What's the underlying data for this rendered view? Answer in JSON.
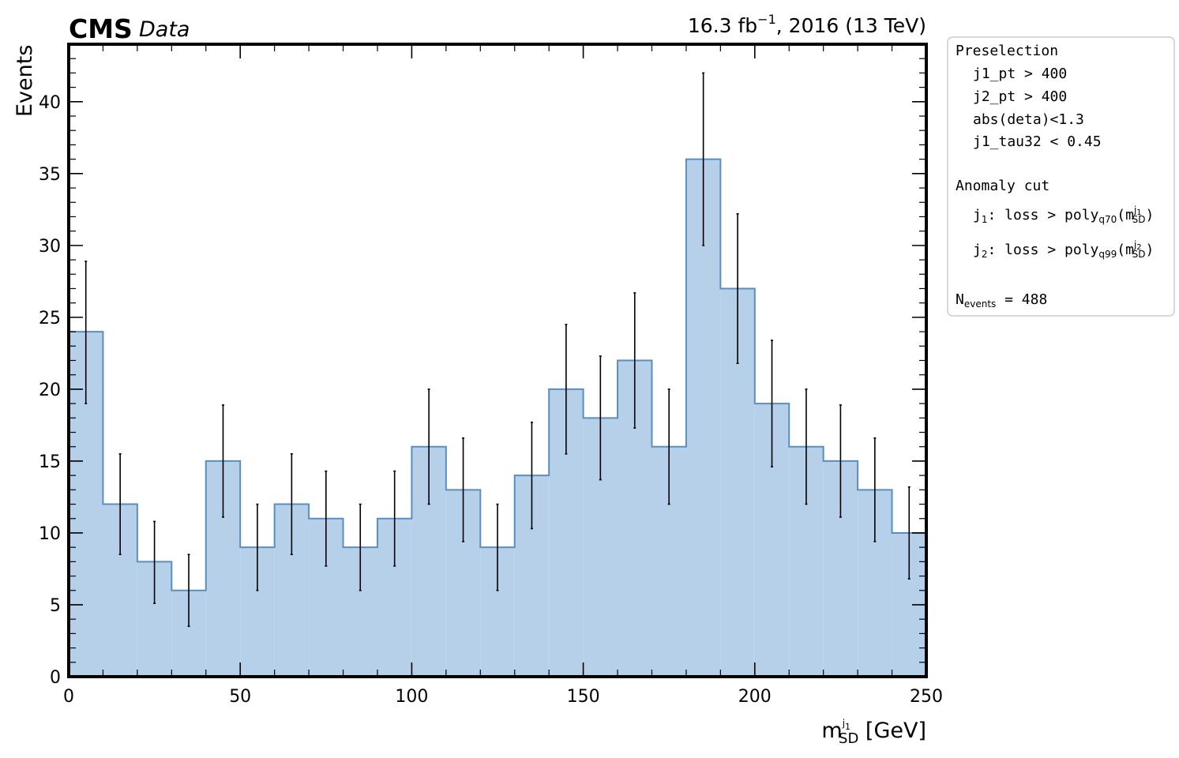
{
  "header": {
    "experiment": "CMS",
    "status": "Data",
    "lumi_value": "16.3 fb",
    "lumi_exp": "−1",
    "lumi_rest": ", 2016 (13 TeV)"
  },
  "legend": {
    "preselection_title": "Preselection",
    "preselection_cuts": [
      "j1_pt > 400",
      "j2_pt > 400",
      "abs(deta)<1.3",
      "j1_tau32 < 0.45"
    ],
    "anomaly_title": "Anomaly cut",
    "anomaly_j1": {
      "jet": "j",
      "jet_sub": "1",
      "text": ": loss > poly",
      "q_sub": "q70",
      "m_open": "(m",
      "m_sup": "j",
      "m_sup_sub": "1",
      "m_sub": "SD",
      "close": ")"
    },
    "anomaly_j2": {
      "jet": "j",
      "jet_sub": "2",
      "text": ": loss > poly",
      "q_sub": "q99",
      "m_open": "(m",
      "m_sup": "j",
      "m_sup_sub": "2",
      "m_sub": "SD",
      "close": ")"
    },
    "nevents_label": "N",
    "nevents_sub": "events",
    "nevents_value": " = 488"
  },
  "colors": {
    "fill": "#b6d0ea",
    "edge": "#5a8ec0",
    "errorbar": "#000000",
    "frame": "#000000"
  },
  "chart_data": {
    "type": "histogram",
    "xlabel_main": "m",
    "xlabel_sup": "j",
    "xlabel_sup_sub": "1",
    "xlabel_sub": "SD",
    "xlabel_unit": " [GeV]",
    "ylabel": "Events",
    "xlim": [
      0,
      250
    ],
    "ylim": [
      0,
      44
    ],
    "x_ticks": [
      0,
      50,
      100,
      150,
      200,
      250
    ],
    "y_ticks": [
      0,
      5,
      10,
      15,
      20,
      25,
      30,
      35,
      40
    ],
    "bin_edges": [
      0,
      10,
      20,
      30,
      40,
      50,
      60,
      70,
      80,
      90,
      100,
      110,
      120,
      130,
      140,
      150,
      160,
      170,
      180,
      190,
      200,
      210,
      220,
      230,
      240,
      250
    ],
    "values": [
      24,
      12,
      8,
      6,
      15,
      9,
      12,
      11,
      9,
      11,
      16,
      13,
      9,
      14,
      20,
      18,
      22,
      16,
      36,
      27,
      19,
      16,
      15,
      13,
      10
    ],
    "err_low": [
      5.0,
      3.5,
      2.9,
      2.5,
      3.9,
      3.0,
      3.5,
      3.3,
      3.0,
      3.3,
      4.0,
      3.6,
      3.0,
      3.7,
      4.5,
      4.3,
      4.7,
      4.0,
      6.0,
      5.2,
      4.4,
      4.0,
      3.9,
      3.6,
      3.2
    ],
    "err_high": [
      4.9,
      3.5,
      2.8,
      2.5,
      3.9,
      3.0,
      3.5,
      3.3,
      3.0,
      3.3,
      4.0,
      3.6,
      3.0,
      3.7,
      4.5,
      4.3,
      4.7,
      4.0,
      6.0,
      5.2,
      4.4,
      4.0,
      3.9,
      3.6,
      3.2
    ]
  }
}
